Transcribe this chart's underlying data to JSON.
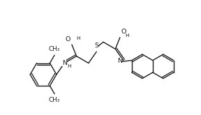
{
  "bg_color": "#ffffff",
  "line_color": "#1a1a1a",
  "line_width": 1.0,
  "font_size": 6.8,
  "figsize": [
    2.88,
    1.65
  ],
  "dpi": 100,
  "xlim": [
    -1,
    12
  ],
  "ylim": [
    -0.5,
    6.5
  ]
}
